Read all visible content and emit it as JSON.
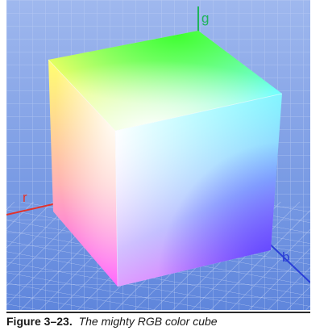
{
  "figure": {
    "axes": {
      "r": {
        "label": "r",
        "color": "#e2332c"
      },
      "g": {
        "label": "g",
        "color": "#1fb45a"
      },
      "b": {
        "label": "b",
        "color": "#2a3fd6"
      }
    },
    "background": {
      "top": "#9fb8ee",
      "bottom": "#5f86dc",
      "grid": "#c7d4f5"
    },
    "cube_faces": {
      "front_vertex_white": "#ffffff",
      "top_face": [
        "#ffff66",
        "#7dff3a",
        "#66ffff",
        "#ffffff"
      ],
      "left_face": [
        "#ffff80",
        "#ffffff",
        "#ff5cff",
        "#ff7070"
      ],
      "right_face": [
        "#ffffff",
        "#66ffff",
        "#5050ff",
        "#ff66ff"
      ]
    }
  },
  "caption": {
    "number": "Figure 3–23.",
    "text": "The mighty RGB color cube"
  }
}
